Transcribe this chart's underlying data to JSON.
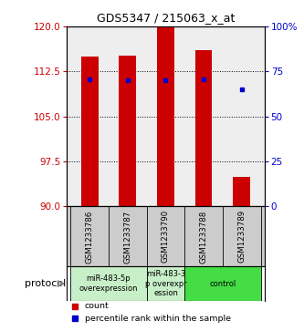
{
  "title": "GDS5347 / 215063_x_at",
  "samples": [
    "GSM1233786",
    "GSM1233787",
    "GSM1233790",
    "GSM1233788",
    "GSM1233789"
  ],
  "bar_values": [
    115.0,
    115.2,
    120.0,
    116.0,
    95.0
  ],
  "bar_bottom": 90,
  "bar_color": "#cc0000",
  "blue_values": [
    111.2,
    111.0,
    111.0,
    111.2,
    109.5
  ],
  "blue_color": "#0000cc",
  "ylim_left": [
    90,
    120
  ],
  "yticks_left": [
    90,
    97.5,
    105,
    112.5,
    120
  ],
  "ylim_right": [
    0,
    100
  ],
  "yticks_right": [
    0,
    25,
    50,
    75,
    100
  ],
  "yticklabels_right": [
    "0",
    "25",
    "50",
    "75",
    "100%"
  ],
  "left_tick_color": "#cc0000",
  "right_tick_color": "#0000cc",
  "groups": [
    {
      "label": "miR-483-5p\noverexpression",
      "cols": [
        0,
        1
      ],
      "color": "#c8f0c8"
    },
    {
      "label": "miR-483-3\np overexpr\nession",
      "cols": [
        2
      ],
      "color": "#c8f0c8"
    },
    {
      "label": "control",
      "cols": [
        3,
        4
      ],
      "color": "#44dd44"
    }
  ],
  "protocol_label": "protocol",
  "legend_items": [
    {
      "color": "#cc0000",
      "label": "count"
    },
    {
      "color": "#0000cc",
      "label": "percentile rank within the sample"
    }
  ],
  "bar_width": 0.45,
  "bg_color": "#ffffff",
  "plot_bg_color": "#eeeeee",
  "label_bg_color": "#cccccc"
}
